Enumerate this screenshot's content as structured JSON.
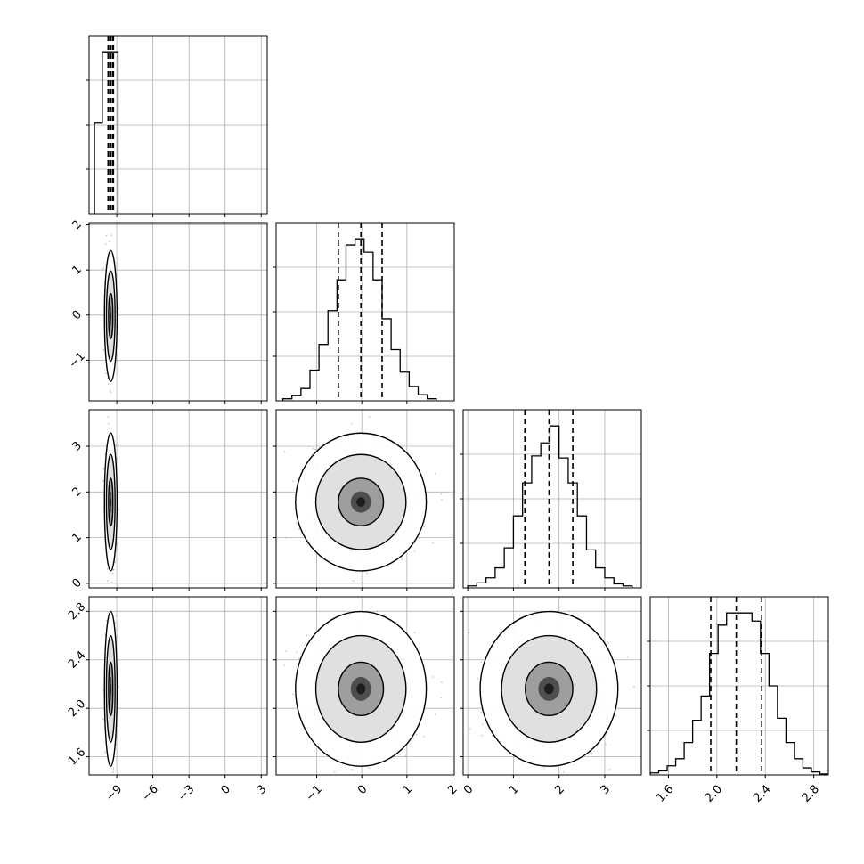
{
  "chart_data": {
    "type": "corner",
    "title": "",
    "params": [
      {
        "index": 0,
        "label": "",
        "range": [
          -11.3,
          3.5
        ],
        "ticks": [
          -9,
          -6,
          -3,
          0,
          3
        ],
        "tick_labels": [
          "−9",
          "−6",
          "−3",
          "0",
          "3"
        ],
        "median": -9.5,
        "q16": -9.7,
        "q84": -9.3
      },
      {
        "index": 1,
        "label": "",
        "range": [
          -1.9,
          2.05
        ],
        "ticks": [
          -1,
          0,
          1,
          2
        ],
        "tick_labels": [
          "−1",
          "0",
          "1",
          "2"
        ],
        "median": -0.02,
        "q16": -0.52,
        "q84": 0.45
      },
      {
        "index": 2,
        "label": "",
        "range": [
          -0.1,
          3.8
        ],
        "ticks": [
          0,
          1,
          2,
          3
        ],
        "tick_labels": [
          "0",
          "1",
          "2",
          "3"
        ],
        "median": 1.78,
        "q16": 1.25,
        "q84": 2.3
      },
      {
        "index": 3,
        "label": "",
        "range": [
          1.45,
          2.92
        ],
        "ticks": [
          1.6,
          2.0,
          2.4,
          2.8
        ],
        "tick_labels": [
          "1.6",
          "2.0",
          "2.4",
          "2.8"
        ],
        "median": 2.16,
        "q16": 1.95,
        "q84": 2.37
      }
    ],
    "histograms": [
      {
        "param": 0,
        "bin_edges": [
          -10.85,
          -10.2,
          -9.55,
          -8.9
        ],
        "counts": [
          1800,
          3200,
          3200
        ]
      },
      {
        "param": 1,
        "bin_edges": [
          -1.75,
          -1.55,
          -1.35,
          -1.15,
          -0.95,
          -0.75,
          -0.55,
          -0.35,
          -0.15,
          0.05,
          0.25,
          0.45,
          0.65,
          0.85,
          1.05,
          1.25,
          1.45,
          1.65
        ],
        "counts": [
          2,
          5,
          12,
          30,
          55,
          88,
          118,
          152,
          158,
          145,
          118,
          80,
          50,
          28,
          14,
          6,
          2
        ]
      },
      {
        "param": 2,
        "bin_edges": [
          0.0,
          0.2,
          0.4,
          0.6,
          0.8,
          1.0,
          1.2,
          1.4,
          1.6,
          1.8,
          2.0,
          2.2,
          2.4,
          2.6,
          2.8,
          3.0,
          3.2,
          3.4,
          3.6
        ],
        "counts": [
          2,
          5,
          10,
          20,
          40,
          72,
          105,
          132,
          145,
          162,
          130,
          105,
          72,
          38,
          20,
          10,
          4,
          2
        ]
      },
      {
        "param": 3,
        "bin_edges": [
          1.45,
          1.52,
          1.59,
          1.66,
          1.73,
          1.8,
          1.87,
          1.94,
          2.01,
          2.08,
          2.15,
          2.22,
          2.29,
          2.36,
          2.43,
          2.5,
          2.57,
          2.64,
          2.71,
          2.78,
          2.85,
          2.92
        ],
        "counts": [
          2,
          4,
          9,
          16,
          32,
          54,
          78,
          120,
          148,
          160,
          160,
          160,
          152,
          120,
          88,
          56,
          32,
          16,
          7,
          3,
          1
        ]
      }
    ],
    "distribution": {
      "means": [
        -9.5,
        -0.02,
        1.78,
        2.16
      ],
      "sigmas": [
        0.18,
        0.5,
        0.52,
        0.22
      ]
    },
    "levels": [
      0.393,
      0.865,
      0.989
    ],
    "grid": true,
    "show_quantiles": true
  }
}
